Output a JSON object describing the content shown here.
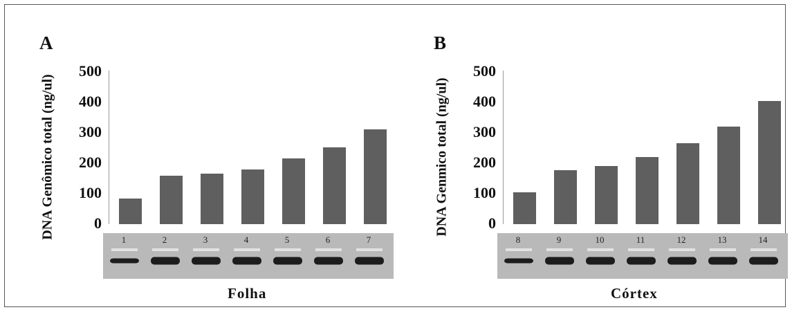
{
  "chart_data": [
    {
      "type": "bar",
      "panel_label": "A",
      "ylabel": "DNA Genômico total (ng/ul)",
      "xlabel": "Folha",
      "ylim": [
        0,
        500
      ],
      "yticks": [
        "0",
        "100",
        "200",
        "300",
        "400",
        "500"
      ],
      "categories": [
        "1",
        "2",
        "3",
        "4",
        "5",
        "6",
        "7"
      ],
      "values": [
        84,
        160,
        165,
        180,
        215,
        253,
        311
      ],
      "bar_color": "#5f5f5f",
      "grid": false
    },
    {
      "type": "bar",
      "panel_label": "B",
      "ylabel": "DNA Genmico total (ng/ul)",
      "xlabel": "Córtex",
      "ylim": [
        0,
        500
      ],
      "yticks": [
        "0",
        "100",
        "200",
        "300",
        "400",
        "500"
      ],
      "categories": [
        "8",
        "9",
        "10",
        "11",
        "12",
        "13",
        "14"
      ],
      "values": [
        105,
        177,
        191,
        220,
        265,
        320,
        404
      ],
      "bar_color": "#5f5f5f",
      "grid": false
    }
  ]
}
